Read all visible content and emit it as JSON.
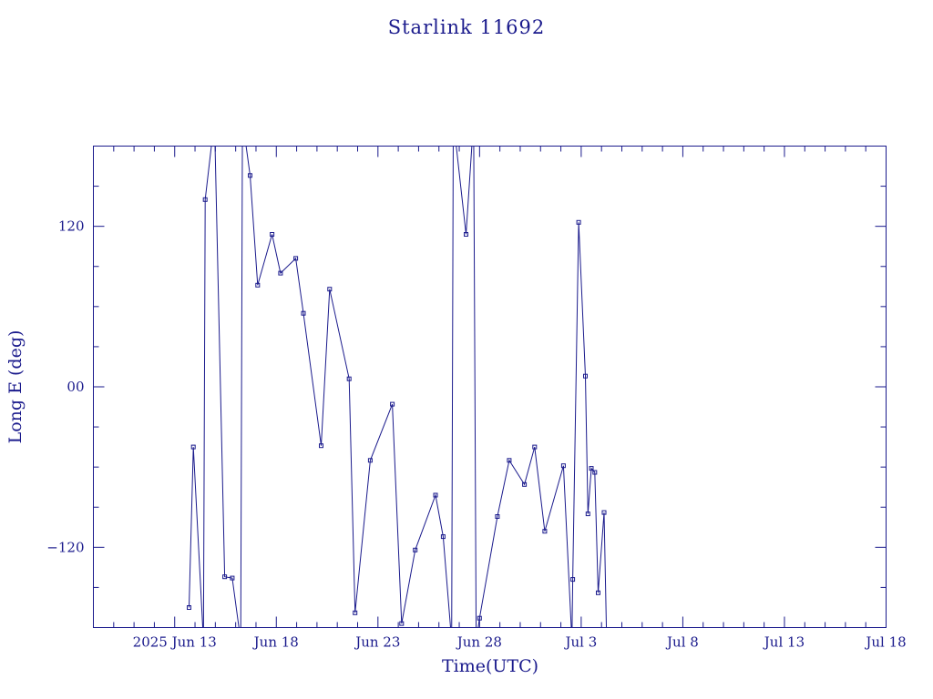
{
  "chart_data": {
    "type": "line",
    "title": "Starlink 11692",
    "xlabel": "Time(UTC)",
    "ylabel": "Long E (deg)",
    "x_unit": "days",
    "xlim": [
      "2025-06-09",
      "2025-07-18"
    ],
    "ylim": [
      -180,
      180
    ],
    "x_ticks": [
      {
        "x": "2025-06-13",
        "label": "2025 Jun 13"
      },
      {
        "x": "2025-06-18",
        "label": "Jun 18"
      },
      {
        "x": "2025-06-23",
        "label": "Jun 23"
      },
      {
        "x": "2025-06-28",
        "label": "Jun 28"
      },
      {
        "x": "2025-07-03",
        "label": "Jul 3"
      },
      {
        "x": "2025-07-08",
        "label": "Jul 8"
      },
      {
        "x": "2025-07-13",
        "label": "Jul 13"
      },
      {
        "x": "2025-07-18",
        "label": "Jul 18"
      }
    ],
    "y_ticks": [
      {
        "y": 120,
        "label": "120"
      },
      {
        "y": 0,
        "label": "00"
      },
      {
        "y": -120,
        "label": "−120"
      }
    ],
    "grid": false,
    "wrap_range": [
      -180,
      180
    ],
    "series": [
      {
        "color": "#1a1a8c",
        "points": [
          [
            "2025-06-13T17:00",
            -165
          ],
          [
            "2025-06-13T22:00",
            -45
          ],
          [
            "2025-06-14T10:00",
            -190
          ],
          [
            "2025-06-14T12:00",
            140
          ],
          [
            "2025-06-14T23:00",
            200
          ],
          [
            "2025-06-15T11:00",
            -142
          ],
          [
            "2025-06-15T20:00",
            -143
          ],
          [
            "2025-06-16T06:00",
            -190
          ],
          [
            "2025-06-16T08:00",
            200
          ],
          [
            "2025-06-16T17:00",
            158
          ],
          [
            "2025-06-17T02:00",
            76
          ],
          [
            "2025-06-17T19:00",
            114
          ],
          [
            "2025-06-18T05:00",
            85
          ],
          [
            "2025-06-18T23:00",
            96
          ],
          [
            "2025-06-19T08:00",
            55
          ],
          [
            "2025-06-20T05:00",
            -44
          ],
          [
            "2025-06-20T15:00",
            73
          ],
          [
            "2025-06-21T14:00",
            6
          ],
          [
            "2025-06-21T21:00",
            -169
          ],
          [
            "2025-06-22T15:00",
            -55
          ],
          [
            "2025-06-23T17:00",
            -13
          ],
          [
            "2025-06-24T04:00",
            -177
          ],
          [
            "2025-06-24T20:00",
            -122
          ],
          [
            "2025-06-25T20:00",
            -81
          ],
          [
            "2025-06-26T05:00",
            -112
          ],
          [
            "2025-06-26T15:00",
            -190
          ],
          [
            "2025-06-26T17:00",
            200
          ],
          [
            "2025-06-27T08:00",
            114
          ],
          [
            "2025-06-27T17:00",
            200
          ],
          [
            "2025-06-27T20:00",
            -190
          ],
          [
            "2025-06-28T00:00",
            -173
          ],
          [
            "2025-06-28T21:00",
            -97
          ],
          [
            "2025-06-29T11:00",
            -55
          ],
          [
            "2025-06-30T05:00",
            -73
          ],
          [
            "2025-06-30T17:00",
            -45
          ],
          [
            "2025-07-01T05:00",
            -108
          ],
          [
            "2025-07-02T03:00",
            -59
          ],
          [
            "2025-07-02T13:00",
            -190
          ],
          [
            "2025-07-02T14:00",
            -144
          ],
          [
            "2025-07-02T21:00",
            123
          ],
          [
            "2025-07-03T05:00",
            8
          ],
          [
            "2025-07-03T08:00",
            -95
          ],
          [
            "2025-07-03T12:00",
            -61
          ],
          [
            "2025-07-03T16:00",
            -64
          ],
          [
            "2025-07-03T20:00",
            -154
          ],
          [
            "2025-07-04T03:00",
            -94
          ],
          [
            "2025-07-04T06:00",
            -190
          ]
        ]
      }
    ]
  }
}
